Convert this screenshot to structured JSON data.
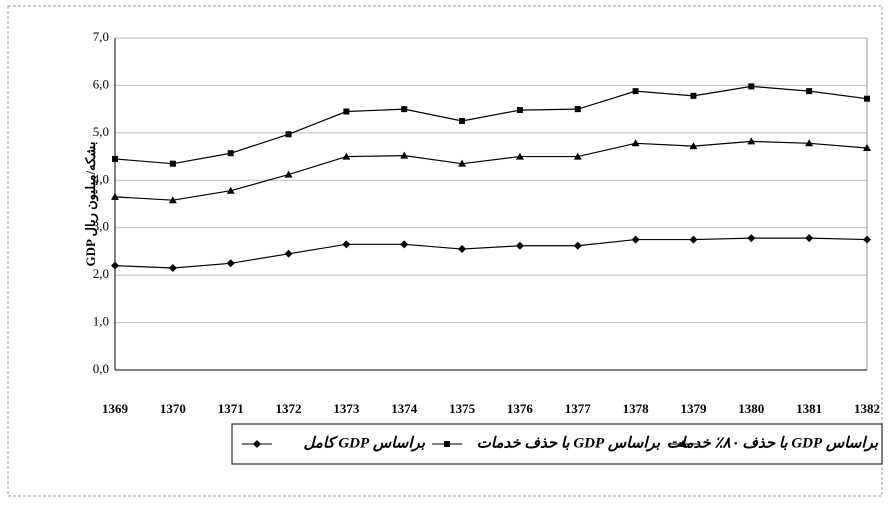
{
  "chart_data": {
    "type": "line",
    "y_label": "GDP بشکه/میلیون ریال",
    "categories": [
      "1369",
      "1370",
      "1371",
      "1372",
      "1373",
      "1374",
      "1375",
      "1376",
      "1377",
      "1378",
      "1379",
      "1380",
      "1381",
      "1382"
    ],
    "series": [
      {
        "name": "براساس GDP کامل",
        "color": "#000000",
        "marker": "diamond",
        "values": [
          2.2,
          2.15,
          2.25,
          2.45,
          2.65,
          2.65,
          2.55,
          2.62,
          2.62,
          2.75,
          2.75,
          2.78,
          2.78,
          2.75
        ]
      },
      {
        "name": "براساس GDP با حذف خدمات",
        "color": "#000000",
        "marker": "square",
        "values": [
          4.45,
          4.35,
          4.57,
          4.97,
          5.45,
          5.5,
          5.25,
          5.48,
          5.5,
          5.88,
          5.78,
          5.98,
          5.88,
          5.72
        ]
      },
      {
        "name": "براساس GDP با حذف ۸۰٪ خدمات",
        "color": "#000000",
        "marker": "triangle",
        "values": [
          3.65,
          3.58,
          3.78,
          4.12,
          4.5,
          4.52,
          4.35,
          4.5,
          4.5,
          4.78,
          4.72,
          4.82,
          4.78,
          4.68
        ]
      }
    ],
    "ylim": [
      0,
      7
    ],
    "yticks": [
      {
        "value": 0,
        "label": "0,0"
      },
      {
        "value": 1,
        "label": "1,0"
      },
      {
        "value": 2,
        "label": "2,0"
      },
      {
        "value": 3,
        "label": "3,0"
      },
      {
        "value": 4,
        "label": "4,0"
      },
      {
        "value": 5,
        "label": "5,0"
      },
      {
        "value": 6,
        "label": "6,0"
      },
      {
        "value": 7,
        "label": "7,0"
      }
    ],
    "grid": true
  }
}
